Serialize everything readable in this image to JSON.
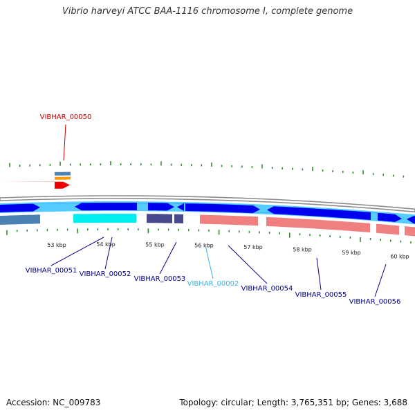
{
  "header": {
    "title": "Vibrio harveyi ATCC BAA-1116 chromosome I, complete genome"
  },
  "footer": {
    "accession": "Accession: NC_009783",
    "summary": "Topology: circular; Length: 3,765,351 bp; Genes: 3,688"
  },
  "colors": {
    "backbone": "#8c8c8c",
    "tick": "#2e8b2e",
    "label_default": "#00008b",
    "label_red": "#cc0000",
    "label_cyan": "#33b5e5",
    "cds_blue": "#0000ee",
    "cds_light": "#55ccff",
    "gene_cyan": "#00eeee",
    "gene_slate": "#48488c",
    "gene_pink": "#f08080",
    "gene_red": "#ee0000",
    "gene_orange": "#ff9900",
    "gene_steel": "#4a82b4"
  },
  "scale_labels": [
    "53 kbp",
    "54 kbp",
    "55 kbp",
    "56 kbp",
    "57 kbp",
    "58 kbp",
    "59 kbp",
    "60 kbp"
  ],
  "genes": [
    {
      "label": "VIBHAR_00050",
      "color": "red"
    },
    {
      "label": "VIBHAR_00051",
      "color": "default"
    },
    {
      "label": "VIBHAR_00052",
      "color": "default"
    },
    {
      "label": "VIBHAR_00053",
      "color": "default"
    },
    {
      "label": "VIBHAR_00002",
      "color": "cyan"
    },
    {
      "label": "VIBHAR_00054",
      "color": "default"
    },
    {
      "label": "VIBHAR_00055",
      "color": "default"
    },
    {
      "label": "VIBHAR_00056",
      "color": "default"
    }
  ]
}
